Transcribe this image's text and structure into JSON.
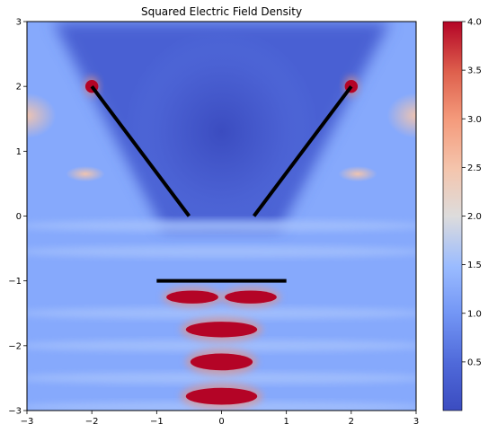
{
  "chart_data": {
    "type": "heatmap",
    "title": "Squared Electric Field Density",
    "xlabel": "",
    "ylabel": "",
    "xlim": [
      -3,
      3
    ],
    "ylim": [
      -3,
      3
    ],
    "x_ticks": [
      "−3",
      "−2",
      "−1",
      "0",
      "1",
      "2",
      "3"
    ],
    "y_ticks": [
      "−3",
      "−2",
      "−1",
      "0",
      "1",
      "2",
      "3"
    ],
    "colormap": "coolwarm",
    "color_range": [
      0,
      4
    ],
    "colorbar_ticks": [
      "0.5",
      "1.0",
      "1.5",
      "2.0",
      "2.5",
      "3.0",
      "3.5",
      "4.0"
    ],
    "colorbar_tick_values": [
      0.5,
      1.0,
      1.5,
      2.0,
      2.5,
      3.0,
      3.5,
      4.0
    ],
    "grid": false,
    "structures": [
      {
        "name": "left-plate",
        "from": [
          -2.0,
          2.0
        ],
        "to": [
          -0.5,
          0.0
        ]
      },
      {
        "name": "right-plate",
        "from": [
          0.5,
          0.0
        ],
        "to": [
          2.0,
          2.0
        ]
      },
      {
        "name": "bottom-plate",
        "from": [
          -1.0,
          -1.0
        ],
        "to": [
          1.0,
          -1.0
        ]
      }
    ],
    "hotspots": [
      {
        "name": "left-tip",
        "x": -2.0,
        "y": 2.0,
        "value": 4.0
      },
      {
        "name": "right-tip",
        "x": 2.0,
        "y": 2.0,
        "value": 4.0
      },
      {
        "name": "band-1-left",
        "x": -0.45,
        "y": -1.25,
        "value": 4.0
      },
      {
        "name": "band-1-right",
        "x": 0.45,
        "y": -1.25,
        "value": 4.0
      },
      {
        "name": "band-2",
        "x": 0.0,
        "y": -1.75,
        "value": 4.0
      },
      {
        "name": "band-3",
        "x": 0.0,
        "y": -2.25,
        "value": 4.0
      },
      {
        "name": "band-4",
        "x": 0.0,
        "y": -2.78,
        "value": 4.0
      }
    ],
    "colors": {
      "low": "#3b4cc0",
      "mid": "#dddddd",
      "high": "#b40426",
      "plate": "#000000"
    }
  }
}
